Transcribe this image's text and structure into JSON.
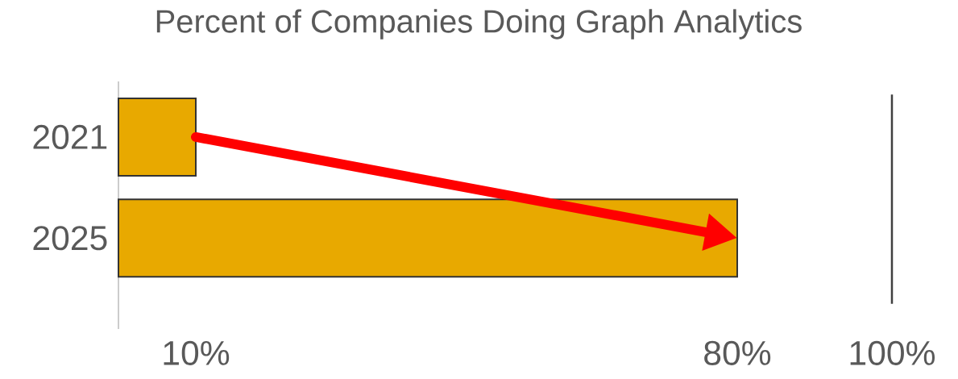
{
  "chart_data": {
    "type": "bar",
    "orientation": "horizontal",
    "title": "Percent of Companies Doing Graph Analytics",
    "categories": [
      "2021",
      "2025"
    ],
    "values": [
      10,
      80
    ],
    "color": "#e8a900",
    "xlim": [
      0,
      100
    ],
    "xticks": [
      {
        "value": 10,
        "label": "10%"
      },
      {
        "value": 80,
        "label": "80%"
      },
      {
        "value": 100,
        "label": "100%"
      }
    ],
    "ref_lines": [
      {
        "axis": "x",
        "value": 100,
        "color": "#404040"
      }
    ]
  }
}
